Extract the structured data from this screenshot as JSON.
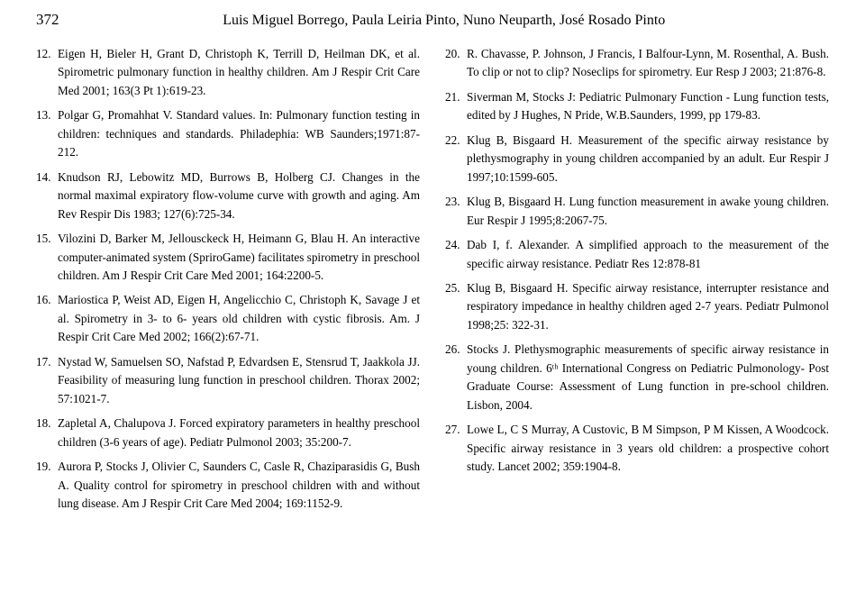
{
  "page_number": "372",
  "header_authors": "Luis Miguel Borrego, Paula Leiria Pinto, Nuno Neuparth, José Rosado Pinto",
  "colors": {
    "text": "#000000",
    "background": "#ffffff"
  },
  "typography": {
    "body_font_family": "Georgia, Times New Roman, serif",
    "body_font_size_pt": 10,
    "header_font_size_pt": 12,
    "line_height": 1.55
  },
  "left_refs": [
    {
      "num": "12.",
      "text": "Eigen H, Bieler H, Grant D, Christoph K, Terrill D, Heilman DK, et al. Spirometric pulmonary function in healthy children. Am J Respir Crit Care Med 2001; 163(3 Pt 1):619-23."
    },
    {
      "num": "13.",
      "text": "Polgar G, Promahhat V. Standard values. In: Pulmonary function testing in children: techniques and standards. Philadephia: WB Saunders;1971:87-212."
    },
    {
      "num": "14.",
      "text": "Knudson RJ, Lebowitz MD, Burrows B, Holberg CJ. Changes in the normal maximal expiratory flow-volume curve with growth and aging. Am Rev Respir Dis 1983; 127(6):725-34."
    },
    {
      "num": "15.",
      "text": "Vilozini D, Barker M, Jellousckeck H, Heimann G, Blau H. An interactive computer-animated system (SpriroGame) facilitates spirometry in preschool children. Am J Respir Crit Care Med 2001; 164:2200-5."
    },
    {
      "num": "16.",
      "text": "Mariostica P, Weist AD, Eigen H, Angelicchio C, Christoph K, Savage J et al. Spirometry in 3- to 6- years old children with cystic fibrosis. Am. J Respir Crit Care Med 2002; 166(2):67-71."
    },
    {
      "num": "17.",
      "text": "Nystad W, Samuelsen SO, Nafstad P, Edvardsen E, Stensrud T, Jaakkola JJ. Feasibility of measuring lung function in preschool children. Thorax 2002; 57:1021-7."
    },
    {
      "num": "18.",
      "text": "Zapletal A, Chalupova J. Forced expiratory parameters in healthy preschool children (3-6 years of age). Pediatr Pulmonol 2003; 35:200-7."
    },
    {
      "num": "19.",
      "text": "Aurora P, Stocks J, Olivier C, Saunders C, Casle R, Chaziparasidis G, Bush A. Quality control for spirometry in preschool children with and without lung disease. Am J Respir Crit Care Med 2004; 169:1152-9."
    }
  ],
  "right_refs": [
    {
      "num": "20.",
      "text": "R. Chavasse, P. Johnson, J Francis, I Balfour-Lynn, M. Rosenthal, A. Bush. To clip or not to clip? Noseclips for spirometry. Eur Resp J 2003; 21:876-8."
    },
    {
      "num": "21.",
      "text": "Siverman M, Stocks J: Pediatric Pulmonary Function - Lung function tests, edited by J Hughes, N Pride, W.B.Saunders, 1999, pp 179-83."
    },
    {
      "num": "22.",
      "text": "Klug B, Bisgaard H. Measurement of the specific airway resistance by plethysmography in young children accompanied by an adult. Eur Respir J 1997;10:1599-605."
    },
    {
      "num": "23.",
      "text": "Klug B, Bisgaard H. Lung function measurement in awake young children. Eur Respir J 1995;8:2067-75."
    },
    {
      "num": "24.",
      "text": " Dab I, f. Alexander. A simplified approach to the measurement of the specific airway resistance. Pediatr Res 12:878-81"
    },
    {
      "num": "25.",
      "text": "Klug B, Bisgaard H. Specific airway resistance, interrupter resistance and respiratory impedance in healthy children aged 2-7 years. Pediatr Pulmonol 1998;25: 322-31."
    },
    {
      "num": "26.",
      "text": "Stocks J. Plethysmographic measurements of specific airway resistance in young children. 6ᵗʰ International Congress on Pediatric Pulmonology- Post Graduate Course: Assessment of Lung function in pre-school children. Lisbon, 2004."
    },
    {
      "num": "27.",
      "text": "Lowe L, C S Murray, A Custovic, B M Simpson, P M Kissen, A Woodcock. Specific airway resistance in 3 years old children: a prospective cohort study. Lancet 2002; 359:1904-8."
    }
  ]
}
